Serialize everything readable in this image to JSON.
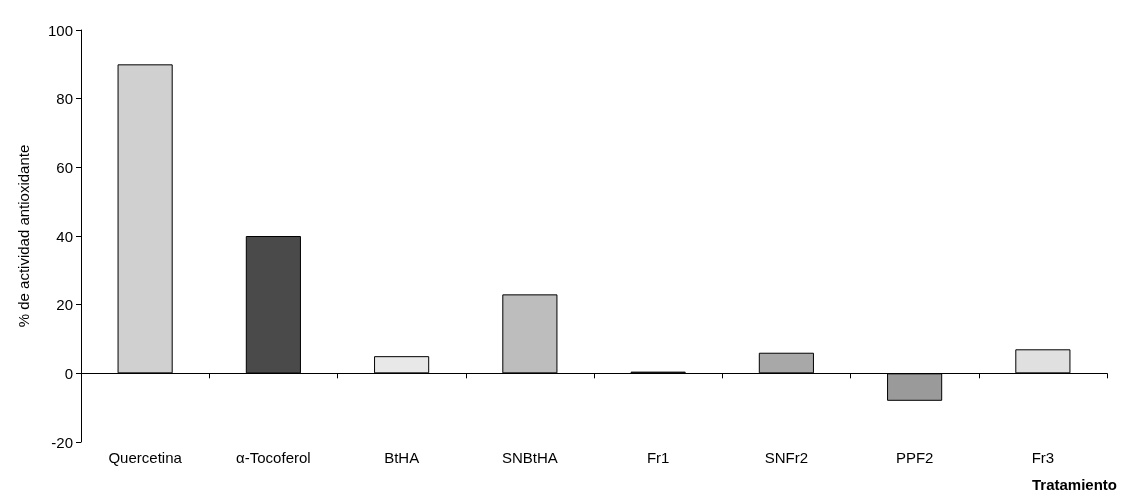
{
  "chart_data": {
    "type": "bar",
    "xlabel": "Tratamiento",
    "ylabel": "% de actividad antioxidante",
    "categories": [
      "Quercetina",
      "α-Tocoferol",
      "BtHA",
      "SNBtHA",
      "Fr1",
      "SNFr2",
      "PPF2",
      "Fr3"
    ],
    "values": [
      90,
      40,
      5,
      23,
      0.5,
      6,
      -8,
      7
    ],
    "colors": [
      "#d0d0d0",
      "#4a4a4a",
      "#e8e8e8",
      "#bdbdbd",
      "#808080",
      "#a8a8a8",
      "#9a9a9a",
      "#e0e0e0"
    ],
    "ylim": [
      -20,
      100
    ],
    "yticks": [
      -20,
      0,
      20,
      40,
      60,
      80,
      100
    ]
  }
}
